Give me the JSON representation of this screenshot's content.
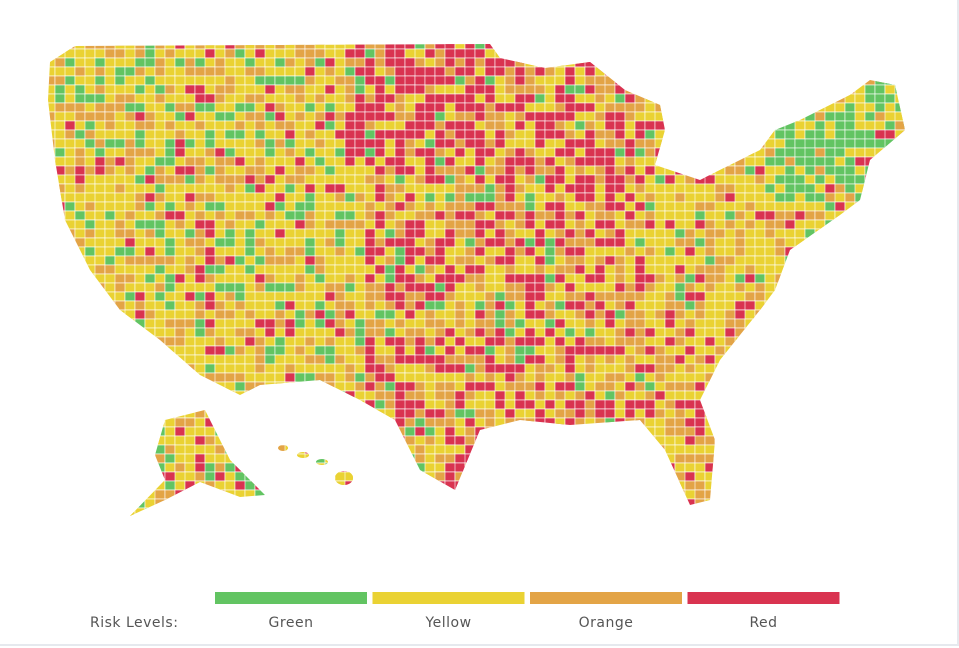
{
  "legend": {
    "title": "Risk Levels:",
    "items": [
      {
        "label": "Green",
        "color": "#62c462"
      },
      {
        "label": "Yellow",
        "color": "#ead233"
      },
      {
        "label": "Orange",
        "color": "#e3a446"
      },
      {
        "label": "Red",
        "color": "#d93350"
      }
    ]
  }
}
